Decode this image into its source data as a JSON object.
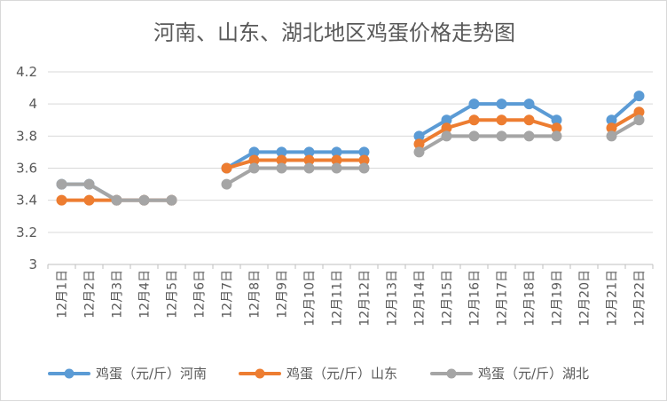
{
  "chart_data": {
    "type": "line",
    "title": "河南、山东、湖北地区鸡蛋价格走势图",
    "xlabel": "",
    "ylabel": "",
    "ylim": [
      3,
      4.2
    ],
    "yticks": [
      3,
      3.2,
      3.4,
      3.6,
      3.8,
      4,
      4.2
    ],
    "ytick_labels": [
      "3",
      "3.2",
      "3.4",
      "3.6",
      "3.8",
      "4",
      "4.2"
    ],
    "grid": true,
    "legend_position": "bottom",
    "categories": [
      "12月1日",
      "12月2日",
      "12月3日",
      "12月4日",
      "12月5日",
      "12月6日",
      "12月7日",
      "12月8日",
      "12月9日",
      "12月10日",
      "12月11日",
      "12月12日",
      "12月13日",
      "12月14日",
      "12月15日",
      "12月16日",
      "12月17日",
      "12月18日",
      "12月19日",
      "12月20日",
      "12月21日",
      "12月22日"
    ],
    "series": [
      {
        "name": "鸡蛋（元/斤）河南",
        "color": "#5b9bd5",
        "values": [
          3.5,
          3.5,
          3.4,
          3.4,
          3.4,
          null,
          3.6,
          3.7,
          3.7,
          3.7,
          3.7,
          3.7,
          null,
          3.8,
          3.9,
          4.0,
          4.0,
          4.0,
          3.9,
          null,
          3.9,
          4.05
        ]
      },
      {
        "name": "鸡蛋（元/斤）山东",
        "color": "#ed7d31",
        "values": [
          3.4,
          3.4,
          3.4,
          3.4,
          3.4,
          null,
          3.6,
          3.65,
          3.65,
          3.65,
          3.65,
          3.65,
          null,
          3.75,
          3.85,
          3.9,
          3.9,
          3.9,
          3.85,
          null,
          3.85,
          3.95
        ]
      },
      {
        "name": "鸡蛋（元/斤）湖北",
        "color": "#a5a5a5",
        "values": [
          3.5,
          3.5,
          3.4,
          3.4,
          3.4,
          null,
          3.5,
          3.6,
          3.6,
          3.6,
          3.6,
          3.6,
          null,
          3.7,
          3.8,
          3.8,
          3.8,
          3.8,
          3.8,
          null,
          3.8,
          3.9
        ]
      }
    ]
  }
}
